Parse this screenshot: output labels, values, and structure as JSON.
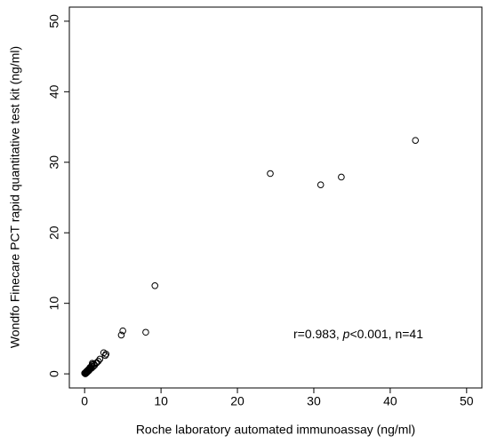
{
  "chart_data": {
    "type": "scatter",
    "x_label": "Roche laboratory automated immunoassay (ng/ml)",
    "y_label": "Wondfo Finecare PCT rapid quantitative test kit (ng/ml)",
    "annotation": [
      "r=0.983, ",
      "p",
      "<0.001, n=41"
    ],
    "xlim": [
      -2,
      52
    ],
    "ylim": [
      -2,
      52
    ],
    "xticks": [
      0,
      10,
      20,
      30,
      40,
      50
    ],
    "yticks": [
      0,
      10,
      20,
      30,
      40,
      50
    ],
    "color": "#000000",
    "x": [
      43.3,
      33.6,
      30.9,
      24.3,
      9.2,
      8.0,
      5.0,
      4.8,
      2.8,
      2.5,
      2.7,
      2.0,
      1.8,
      1.6,
      1.5,
      1.2,
      1.0,
      1.1,
      0.9,
      0.8,
      0.9,
      0.7,
      0.6,
      0.6,
      0.5,
      0.5,
      0.4,
      0.4,
      0.3,
      0.3,
      0.2,
      0.2,
      0.1,
      0.1,
      1.3,
      1.0,
      0.7,
      0.5,
      0.3,
      0.2,
      0.0
    ],
    "values": [
      33.1,
      27.9,
      26.8,
      28.4,
      12.5,
      5.9,
      6.1,
      5.5,
      2.8,
      3.0,
      2.6,
      2.1,
      1.8,
      1.6,
      1.5,
      1.4,
      1.5,
      1.0,
      1.1,
      0.9,
      0.8,
      0.7,
      0.7,
      0.5,
      0.6,
      0.4,
      0.5,
      0.3,
      0.3,
      0.2,
      0.2,
      0.1,
      0.1,
      0.0,
      1.2,
      1.3,
      0.9,
      0.6,
      0.4,
      0.3,
      0.1
    ]
  }
}
